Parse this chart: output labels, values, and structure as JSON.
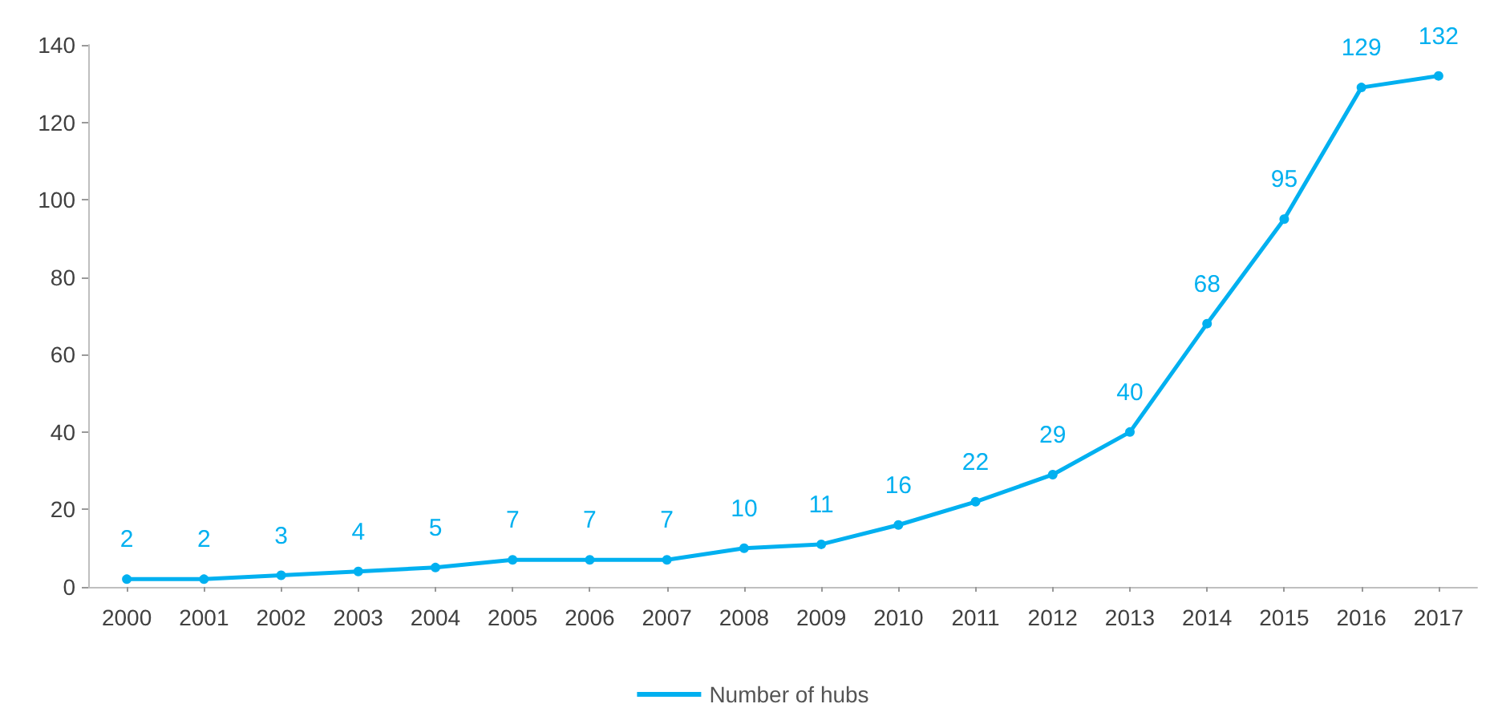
{
  "chart_data": {
    "type": "line",
    "categories": [
      "2000",
      "2001",
      "2002",
      "2003",
      "2004",
      "2005",
      "2006",
      "2007",
      "2008",
      "2009",
      "2010",
      "2011",
      "2012",
      "2013",
      "2014",
      "2015",
      "2016",
      "2017"
    ],
    "series": [
      {
        "name": "Number of hubs",
        "color": "#00b0f0",
        "values": [
          2,
          2,
          3,
          4,
          5,
          7,
          7,
          7,
          10,
          11,
          16,
          22,
          29,
          40,
          68,
          95,
          129,
          132
        ]
      }
    ],
    "ylim": [
      0,
      140
    ],
    "yticks": [
      0,
      20,
      40,
      60,
      80,
      100,
      120,
      140
    ],
    "grid": false,
    "legend": "bottom",
    "data_labels": true,
    "marker": "circle",
    "line_style": "solid"
  }
}
